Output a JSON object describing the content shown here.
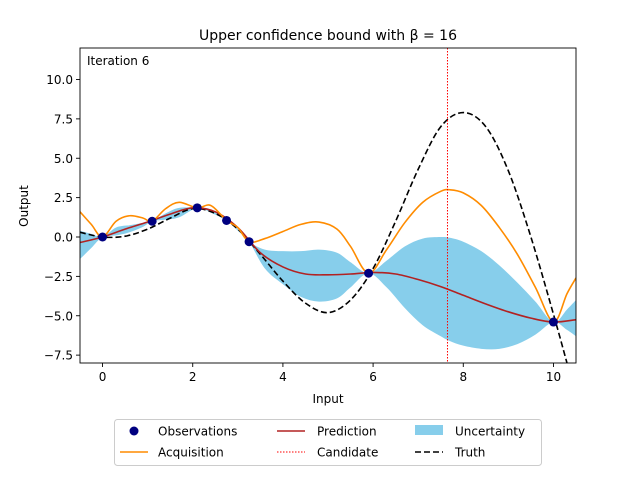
{
  "chart_data": {
    "type": "line",
    "title": "Upper confidence bound with β = 16",
    "annotation": "Iteration 6",
    "xlabel": "Input",
    "ylabel": "Output",
    "xlim": [
      -0.5,
      10.5
    ],
    "ylim": [
      -8.0,
      12.0
    ],
    "xticks": [
      0,
      2,
      4,
      6,
      8,
      10
    ],
    "xtick_labels": [
      "0",
      "2",
      "4",
      "6",
      "8",
      "10"
    ],
    "yticks": [
      -7.5,
      -5.0,
      -2.5,
      0.0,
      2.5,
      5.0,
      7.5,
      10.0
    ],
    "ytick_labels": [
      "−7.5",
      "−5.0",
      "−2.5",
      "0.0",
      "2.5",
      "5.0",
      "7.5",
      "10.0"
    ],
    "grid": false,
    "legend_placement": "below plot, 3 columns",
    "candidate": 7.65,
    "observations": {
      "name": "Observations",
      "color": "#000080",
      "x": [
        0.0,
        1.1,
        2.1,
        2.75,
        3.25,
        5.9,
        10.0
      ],
      "y": [
        0.0,
        1.0,
        1.85,
        1.05,
        -0.3,
        -2.3,
        -5.4
      ]
    },
    "series": [
      {
        "name": "Truth",
        "color": "#000000",
        "style": "dashed",
        "x": [
          -0.5,
          0,
          0.5,
          1,
          1.5,
          2,
          2.5,
          3,
          3.5,
          4,
          4.5,
          5,
          5.5,
          6,
          6.5,
          7,
          7.5,
          8,
          8.5,
          9,
          9.5,
          10,
          10.3
        ],
        "y": [
          0.3,
          0.0,
          0.05,
          0.5,
          1.2,
          1.8,
          1.5,
          0.5,
          -1.1,
          -2.8,
          -4.2,
          -4.8,
          -4.0,
          -2.0,
          1.0,
          4.3,
          7.0,
          7.9,
          7.0,
          4.2,
          0.0,
          -4.9,
          -8.0
        ]
      },
      {
        "name": "Prediction",
        "color": "#b22222",
        "style": "solid",
        "x": [
          -0.5,
          0,
          0.5,
          1,
          1.5,
          2,
          2.5,
          3,
          3.5,
          4,
          4.5,
          5,
          5.5,
          6,
          6.5,
          7,
          7.5,
          8,
          8.5,
          9,
          9.5,
          10,
          10.5
        ],
        "y": [
          -0.35,
          0.0,
          0.5,
          0.95,
          1.45,
          1.85,
          1.6,
          0.6,
          -1.0,
          -1.9,
          -2.35,
          -2.4,
          -2.35,
          -2.25,
          -2.35,
          -2.7,
          -3.15,
          -3.7,
          -4.25,
          -4.75,
          -5.15,
          -5.4,
          -5.25
        ]
      },
      {
        "name": "Acquisition",
        "color": "#ff8c00",
        "style": "solid",
        "x": [
          -0.5,
          -0.25,
          0,
          0.3,
          0.6,
          0.9,
          1.1,
          1.4,
          1.7,
          2.1,
          2.4,
          2.75,
          3.0,
          3.25,
          3.6,
          4.0,
          4.4,
          4.8,
          5.2,
          5.5,
          5.9,
          6.3,
          6.7,
          7.1,
          7.5,
          7.7,
          8.0,
          8.4,
          8.8,
          9.2,
          9.6,
          10.0,
          10.3,
          10.5
        ],
        "y": [
          1.6,
          0.8,
          0.0,
          1.0,
          1.35,
          1.2,
          1.0,
          1.8,
          2.2,
          1.85,
          2.0,
          1.05,
          0.6,
          -0.3,
          -0.1,
          0.35,
          0.8,
          0.95,
          0.5,
          -0.6,
          -2.3,
          -0.8,
          0.9,
          2.2,
          2.9,
          3.0,
          2.8,
          2.0,
          0.6,
          -1.1,
          -3.2,
          -5.4,
          -3.6,
          -2.6
        ]
      }
    ],
    "uncertainty": {
      "name": "Uncertainty",
      "color": "#87ceeb",
      "x": [
        -0.5,
        -0.25,
        0,
        0.3,
        0.6,
        0.9,
        1.1,
        1.4,
        1.7,
        2.1,
        2.4,
        2.75,
        3.0,
        3.25,
        3.6,
        4.0,
        4.4,
        4.8,
        5.2,
        5.5,
        5.9,
        6.3,
        6.7,
        7.1,
        7.5,
        7.7,
        8.0,
        8.4,
        8.8,
        9.2,
        9.6,
        10.0,
        10.3,
        10.5
      ],
      "upper": [
        0.4,
        0.2,
        0.0,
        0.6,
        0.75,
        0.9,
        1.0,
        1.5,
        1.85,
        1.85,
        1.75,
        1.05,
        0.5,
        -0.3,
        -0.8,
        -0.9,
        -0.9,
        -0.8,
        -1.0,
        -1.6,
        -2.3,
        -1.5,
        -0.6,
        -0.1,
        0.0,
        -0.05,
        -0.3,
        -0.9,
        -1.8,
        -2.9,
        -4.1,
        -5.4,
        -4.6,
        -4.0
      ],
      "lower": [
        -1.4,
        -0.7,
        0.0,
        0.1,
        0.3,
        0.65,
        1.0,
        1.1,
        1.25,
        1.85,
        1.55,
        1.05,
        0.4,
        -0.3,
        -2.0,
        -3.0,
        -3.8,
        -4.1,
        -3.9,
        -3.2,
        -2.3,
        -3.2,
        -4.5,
        -5.6,
        -6.3,
        -6.6,
        -6.9,
        -7.1,
        -7.1,
        -6.8,
        -6.2,
        -5.4,
        -5.9,
        -6.3
      ]
    },
    "legend": {
      "observations": "Observations",
      "acquisition": "Acquisition",
      "prediction": "Prediction",
      "candidate": "Candidate",
      "uncertainty": "Uncertainty",
      "truth": "Truth"
    }
  }
}
